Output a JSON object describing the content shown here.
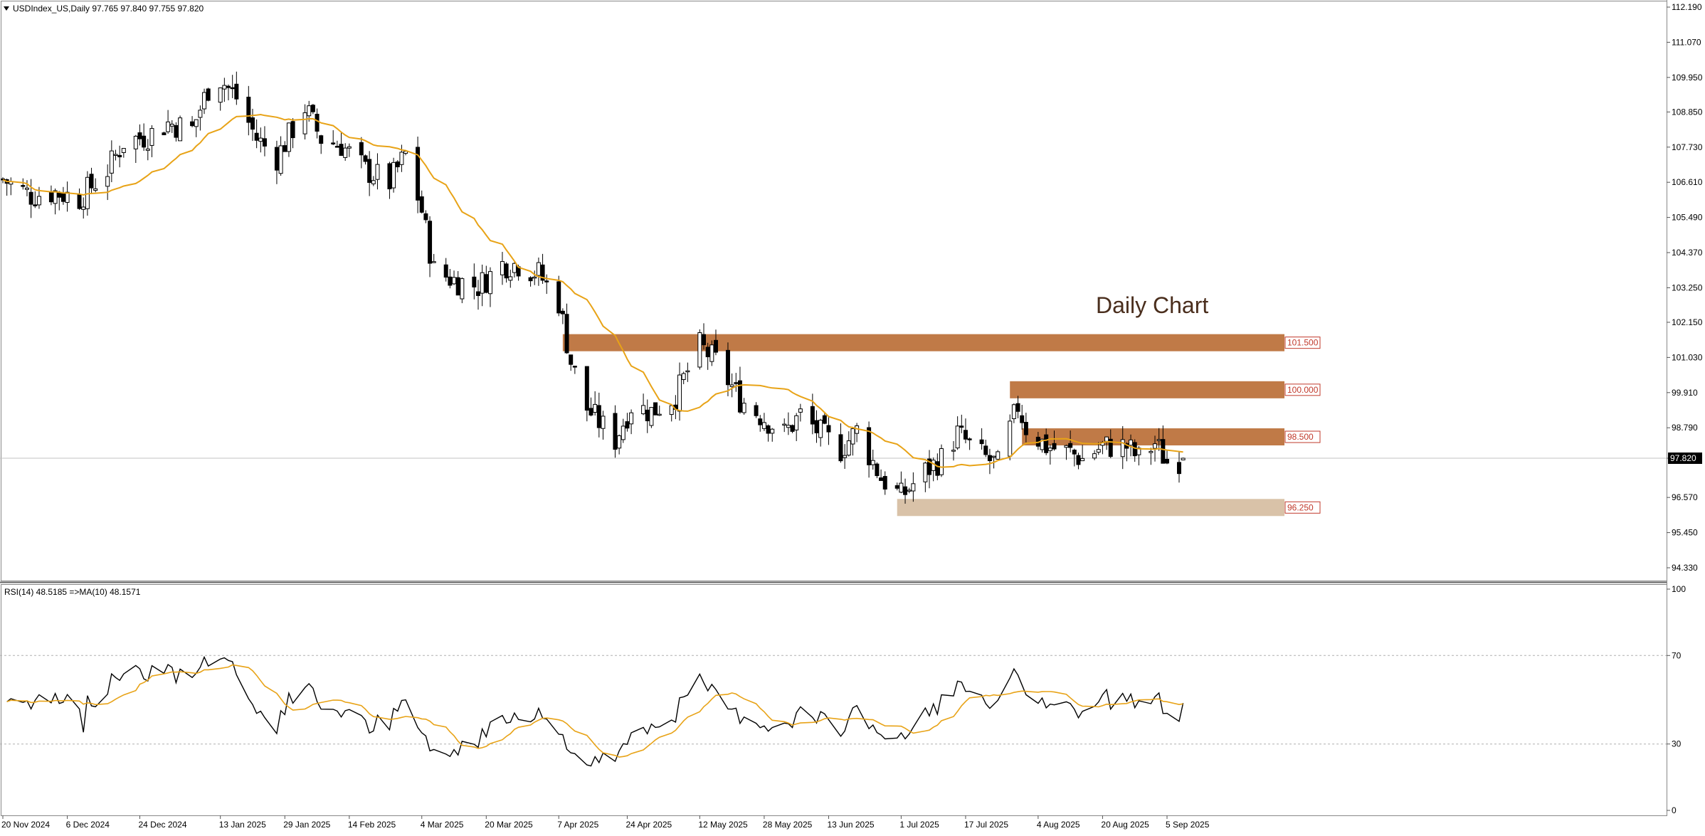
{
  "header": {
    "symbol_line": "USDIndex_US,Daily  97.765 97.840 97.755 97.820",
    "triangle_icon": "triangle-down-icon"
  },
  "rsi_header": "RSI(14) 48.5185  =>MA(10) 48.1571",
  "price_axis_ticks": [
    "112.190",
    "111.070",
    "109.950",
    "108.850",
    "107.730",
    "106.610",
    "105.490",
    "104.370",
    "103.250",
    "102.150",
    "101.030",
    "99.910",
    "98.790",
    "97.820",
    "96.570",
    "95.450",
    "94.330"
  ],
  "rsi_axis_ticks": [
    "100",
    "70",
    "30",
    "0"
  ],
  "date_ticks": [
    "20 Nov 2024",
    "6 Dec 2024",
    "24 Dec 2024",
    "13 Jan 2025",
    "29 Jan 2025",
    "14 Feb 2025",
    "4 Mar 2025",
    "20 Mar 2025",
    "7 Apr 2025",
    "24 Apr 2025",
    "12 May 2025",
    "28 May 2025",
    "13 Jun 2025",
    "1 Jul 2025",
    "17 Jul 2025",
    "4 Aug 2025",
    "20 Aug 2025",
    "5 Sep 2025"
  ],
  "annotation": "Daily Chart",
  "current_price_label": "97.820",
  "levels": [
    {
      "label": "101.500",
      "price": 101.5,
      "color": "#c07a47"
    },
    {
      "label": "100.000",
      "price": 100.0,
      "color": "#c07a47"
    },
    {
      "label": "98.500",
      "price": 98.5,
      "color": "#c07a47"
    },
    {
      "label": "96.250",
      "price": 96.25,
      "color": "#d9c2a8"
    }
  ],
  "colors": {
    "bull_candle": "#ffffff",
    "bear_candle": "#000000",
    "ma_line": "#e8a317",
    "rsi_line": "#000000",
    "rsi_ma_line": "#e8a317",
    "level_label_text": "#c0392b",
    "annotation_text": "#4a2e1d"
  },
  "chart_data": [
    {
      "type": "candlestick",
      "title": "USDIndex_US,Daily",
      "x_range": [
        "20 Nov 2024",
        "10 Sep 2025"
      ],
      "ylim": [
        93.9,
        112.5
      ],
      "ohlc_last": {
        "open": 97.765,
        "high": 97.84,
        "low": 97.755,
        "close": 97.82
      },
      "moving_average_overlay": true,
      "horizontal_zones": [
        101.5,
        100.0,
        98.5,
        96.25
      ],
      "close_series_approx": [
        [
          "2024-11-20",
          106.7
        ],
        [
          "2024-11-27",
          106.2
        ],
        [
          "2024-12-03",
          106.3
        ],
        [
          "2024-12-09",
          106.1
        ],
        [
          "2024-12-16",
          107.0
        ],
        [
          "2024-12-20",
          107.9
        ],
        [
          "2024-12-26",
          108.1
        ],
        [
          "2024-12-31",
          108.5
        ],
        [
          "2025-01-06",
          108.3
        ],
        [
          "2025-01-10",
          109.6
        ],
        [
          "2025-01-13",
          109.9
        ],
        [
          "2025-01-17",
          109.3
        ],
        [
          "2025-01-22",
          108.0
        ],
        [
          "2025-01-27",
          107.4
        ],
        [
          "2025-02-03",
          109.0
        ],
        [
          "2025-02-07",
          108.0
        ],
        [
          "2025-02-12",
          107.8
        ],
        [
          "2025-02-18",
          107.0
        ],
        [
          "2025-02-24",
          106.6
        ],
        [
          "2025-02-28",
          107.5
        ],
        [
          "2025-03-04",
          105.7
        ],
        [
          "2025-03-07",
          103.8
        ],
        [
          "2025-03-12",
          103.5
        ],
        [
          "2025-03-18",
          103.3
        ],
        [
          "2025-03-24",
          104.0
        ],
        [
          "2025-03-28",
          104.0
        ],
        [
          "2025-04-02",
          103.7
        ],
        [
          "2025-04-07",
          102.8
        ],
        [
          "2025-04-10",
          100.9
        ],
        [
          "2025-04-14",
          99.4
        ],
        [
          "2025-04-21",
          98.4
        ],
        [
          "2025-04-25",
          99.5
        ],
        [
          "2025-04-30",
          99.3
        ],
        [
          "2025-05-06",
          99.8
        ],
        [
          "2025-05-12",
          101.4
        ],
        [
          "2025-05-16",
          100.9
        ],
        [
          "2025-05-22",
          99.7
        ],
        [
          "2025-05-27",
          99.2
        ],
        [
          "2025-06-02",
          98.6
        ],
        [
          "2025-06-06",
          99.2
        ],
        [
          "2025-06-11",
          98.6
        ],
        [
          "2025-06-16",
          98.1
        ],
        [
          "2025-06-20",
          98.7
        ],
        [
          "2025-06-26",
          97.2
        ],
        [
          "2025-07-01",
          96.6
        ],
        [
          "2025-07-07",
          97.4
        ],
        [
          "2025-07-11",
          97.8
        ],
        [
          "2025-07-15",
          98.6
        ],
        [
          "2025-07-21",
          97.9
        ],
        [
          "2025-07-25",
          97.6
        ],
        [
          "2025-07-30",
          99.5
        ],
        [
          "2025-08-01",
          98.8
        ],
        [
          "2025-08-06",
          98.2
        ],
        [
          "2025-08-12",
          98.0
        ],
        [
          "2025-08-15",
          97.8
        ],
        [
          "2025-08-20",
          98.2
        ],
        [
          "2025-08-26",
          98.2
        ],
        [
          "2025-08-29",
          97.8
        ],
        [
          "2025-09-02",
          98.3
        ],
        [
          "2025-09-05",
          97.7
        ],
        [
          "2025-09-09",
          97.8
        ]
      ]
    },
    {
      "type": "line",
      "title": "RSI(14) 48.5185  =>MA(10) 48.1571",
      "ylim": [
        0,
        100
      ],
      "levels": [
        70,
        30
      ],
      "series": [
        {
          "name": "RSI(14)",
          "last": 48.5185
        },
        {
          "name": "MA(10)",
          "last": 48.1571
        }
      ]
    }
  ]
}
